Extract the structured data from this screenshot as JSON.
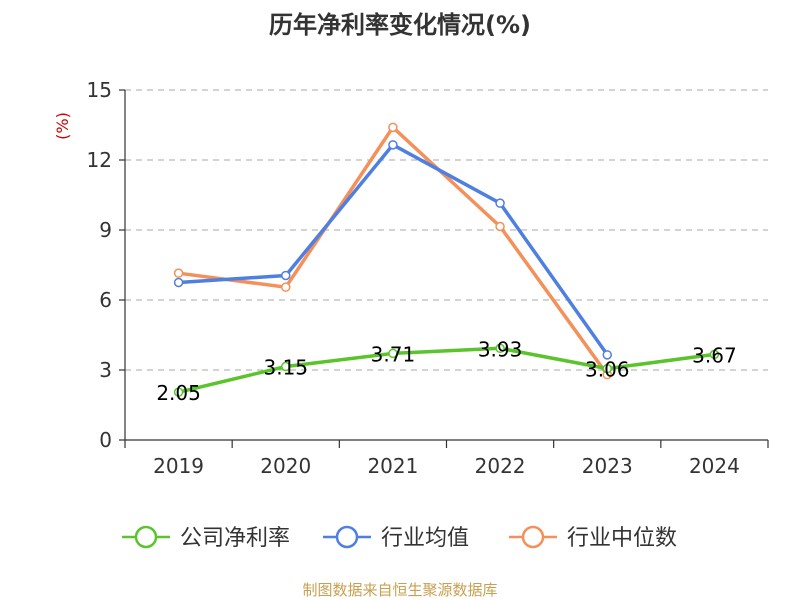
{
  "chart_data": {
    "type": "line",
    "title": "历年净利率变化情况(%)",
    "ylabel": "(%)",
    "xlabel": "",
    "categories": [
      "2019",
      "2020",
      "2021",
      "2022",
      "2023",
      "2024"
    ],
    "ylim": [
      0,
      15
    ],
    "yticks": [
      0,
      3,
      6,
      9,
      12,
      15
    ],
    "grid": true,
    "legend_position": "bottom",
    "series": [
      {
        "name": "公司净利率",
        "color": "#5bc42c",
        "values": [
          2.05,
          3.15,
          3.71,
          3.93,
          3.06,
          3.67
        ],
        "labels": [
          "2.05",
          "3.15",
          "3.71",
          "3.93",
          "3.06",
          "3.67"
        ]
      },
      {
        "name": "行业均值",
        "color": "#4f7fe0",
        "values": [
          6.75,
          7.05,
          12.65,
          10.15,
          3.65,
          null
        ]
      },
      {
        "name": "行业中位数",
        "color": "#f4905a",
        "values": [
          7.15,
          6.55,
          13.4,
          9.15,
          2.8,
          null
        ]
      }
    ],
    "source": "制图数据来自恒生聚源数据库"
  }
}
